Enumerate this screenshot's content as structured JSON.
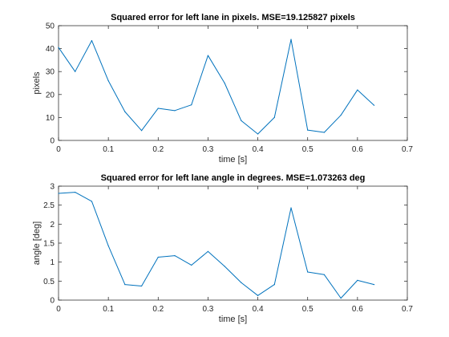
{
  "chart_data": [
    {
      "type": "line",
      "title": "Squared error for left lane in pixels. MSE=19.125827 pixels",
      "xlabel": "time [s]",
      "ylabel": "pixels",
      "xlim": [
        0,
        0.7
      ],
      "ylim": [
        0,
        50
      ],
      "xticks": [
        0,
        0.1,
        0.2,
        0.3,
        0.4,
        0.5,
        0.6,
        0.7
      ],
      "yticks": [
        0,
        10,
        20,
        30,
        40,
        50
      ],
      "xtick_labels": [
        "0",
        "0.1",
        "0.2",
        "0.3",
        "0.4",
        "0.5",
        "0.6",
        "0.7"
      ],
      "ytick_labels": [
        "0",
        "10",
        "20",
        "30",
        "40",
        "50"
      ],
      "grid": false,
      "series": [
        {
          "color": "#0072BD",
          "x": [
            0,
            0.0333,
            0.0667,
            0.1,
            0.1333,
            0.1667,
            0.2,
            0.2333,
            0.2667,
            0.3,
            0.3333,
            0.3667,
            0.4,
            0.4333,
            0.4667,
            0.5,
            0.5333,
            0.5667,
            0.6,
            0.6333
          ],
          "y": [
            40.5,
            30.0,
            43.5,
            26.0,
            12.5,
            4.3,
            14.0,
            13.0,
            15.5,
            37.0,
            25.0,
            8.6,
            2.8,
            10.0,
            44.0,
            4.5,
            3.5,
            11.0,
            22.0,
            15.3
          ]
        }
      ]
    },
    {
      "type": "line",
      "title": "Squared error for left lane angle in degrees. MSE=1.073263 deg",
      "xlabel": "time [s]",
      "ylabel": "angle [deg]",
      "xlim": [
        0,
        0.7
      ],
      "ylim": [
        0,
        3
      ],
      "xticks": [
        0,
        0.1,
        0.2,
        0.3,
        0.4,
        0.5,
        0.6,
        0.7
      ],
      "yticks": [
        0,
        0.5,
        1,
        1.5,
        2,
        2.5,
        3
      ],
      "xtick_labels": [
        "0",
        "0.1",
        "0.2",
        "0.3",
        "0.4",
        "0.5",
        "0.6",
        "0.7"
      ],
      "ytick_labels": [
        "0",
        "0.5",
        "1",
        "1.5",
        "2",
        "2.5",
        "3"
      ],
      "grid": false,
      "series": [
        {
          "color": "#0072BD",
          "x": [
            0,
            0.0333,
            0.0667,
            0.1,
            0.1333,
            0.1667,
            0.2,
            0.2333,
            0.2667,
            0.3,
            0.3333,
            0.3667,
            0.4,
            0.4333,
            0.4667,
            0.5,
            0.5333,
            0.5667,
            0.6,
            0.6333
          ],
          "y": [
            2.81,
            2.84,
            2.6,
            1.43,
            0.41,
            0.37,
            1.13,
            1.17,
            0.92,
            1.28,
            0.89,
            0.46,
            0.12,
            0.41,
            2.43,
            0.74,
            0.67,
            0.05,
            0.52,
            0.41
          ]
        }
      ]
    }
  ]
}
